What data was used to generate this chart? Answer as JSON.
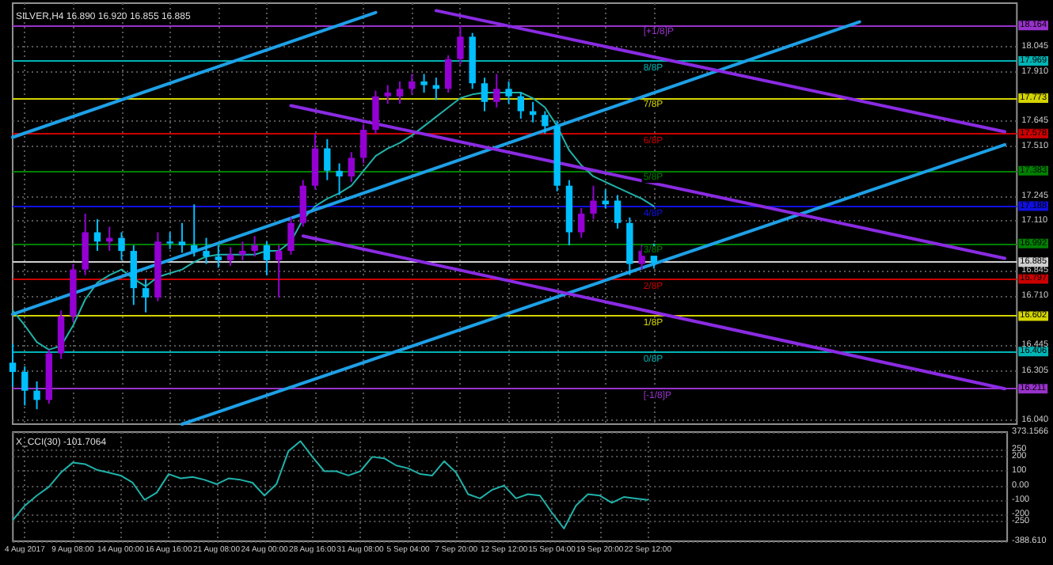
{
  "chart_data": [
    {
      "type": "candlestick",
      "title": "SILVER,H4 16.890 16.920 16.855 16.885",
      "categories": [
        null,
        null,
        null,
        null,
        null,
        null,
        null,
        null,
        null,
        null,
        null,
        null,
        null,
        null,
        null,
        null,
        null,
        null,
        null,
        null,
        null,
        null,
        null,
        null,
        null,
        null,
        null,
        null,
        null,
        null,
        null,
        null,
        null,
        null,
        null,
        null,
        null,
        null,
        null,
        null,
        null,
        null,
        null,
        null,
        null,
        null,
        null,
        null,
        null,
        null,
        null,
        null,
        null,
        null,
        null,
        null,
        null,
        null,
        null,
        null,
        null,
        null,
        null,
        null,
        null,
        null,
        null,
        null,
        null,
        null,
        null,
        null,
        null,
        null,
        null,
        null,
        null,
        null,
        null,
        null,
        null,
        null,
        null,
        null
      ],
      "ohlc": [
        [
          16.35,
          16.45,
          16.22,
          16.3
        ],
        [
          16.3,
          16.33,
          16.12,
          16.2
        ],
        [
          16.2,
          16.25,
          16.1,
          16.15
        ],
        [
          16.15,
          16.42,
          16.13,
          16.4
        ],
        [
          16.4,
          16.63,
          16.37,
          16.6
        ],
        [
          16.6,
          16.88,
          16.57,
          16.85
        ],
        [
          16.85,
          17.15,
          16.82,
          17.05
        ],
        [
          17.05,
          17.12,
          16.95,
          17.0
        ],
        [
          17.0,
          17.08,
          16.95,
          17.02
        ],
        [
          17.02,
          17.05,
          16.9,
          16.95
        ],
        [
          16.95,
          16.98,
          16.66,
          16.75
        ],
        [
          16.75,
          16.8,
          16.62,
          16.7
        ],
        [
          16.7,
          17.05,
          16.68,
          17.0
        ],
        [
          17.0,
          17.05,
          16.96,
          16.99
        ],
        [
          17.0,
          17.1,
          16.94,
          16.98
        ],
        [
          16.98,
          17.2,
          16.92,
          16.95
        ],
        [
          16.95,
          17.02,
          16.88,
          16.92
        ],
        [
          16.92,
          16.98,
          16.86,
          16.9
        ],
        [
          16.9,
          16.97,
          16.87,
          16.93
        ],
        [
          16.93,
          17.0,
          16.9,
          16.95
        ],
        [
          16.95,
          17.03,
          16.92,
          16.98
        ],
        [
          16.98,
          17.0,
          16.82,
          16.9
        ],
        [
          16.9,
          16.98,
          16.7,
          16.95
        ],
        [
          16.95,
          17.13,
          16.93,
          17.1
        ],
        [
          17.1,
          17.33,
          17.08,
          17.3
        ],
        [
          17.3,
          17.58,
          17.28,
          17.5
        ],
        [
          17.5,
          17.55,
          17.33,
          17.38
        ],
        [
          17.38,
          17.42,
          17.25,
          17.35
        ],
        [
          17.35,
          17.48,
          17.32,
          17.45
        ],
        [
          17.45,
          17.63,
          17.42,
          17.6
        ],
        [
          17.6,
          17.81,
          17.58,
          17.78
        ],
        [
          17.78,
          17.84,
          17.74,
          17.8
        ],
        [
          17.78,
          17.86,
          17.74,
          17.82
        ],
        [
          17.82,
          17.9,
          17.79,
          17.86
        ],
        [
          17.86,
          17.9,
          17.8,
          17.84
        ],
        [
          17.84,
          17.88,
          17.76,
          17.82
        ],
        [
          17.82,
          18.0,
          17.8,
          17.98
        ],
        [
          17.98,
          18.16,
          17.95,
          18.1
        ],
        [
          18.1,
          18.12,
          17.82,
          17.85
        ],
        [
          17.85,
          17.88,
          17.7,
          17.75
        ],
        [
          17.75,
          17.9,
          17.72,
          17.82
        ],
        [
          17.82,
          17.86,
          17.74,
          17.78
        ],
        [
          17.78,
          17.8,
          17.66,
          17.7
        ],
        [
          17.7,
          17.75,
          17.64,
          17.68
        ],
        [
          17.68,
          17.7,
          17.58,
          17.62
        ],
        [
          17.62,
          17.65,
          17.27,
          17.3
        ],
        [
          17.3,
          17.33,
          16.98,
          17.05
        ],
        [
          17.05,
          17.18,
          17.02,
          17.15
        ],
        [
          17.15,
          17.3,
          17.12,
          17.22
        ],
        [
          17.22,
          17.28,
          17.18,
          17.2
        ],
        [
          17.22,
          17.25,
          17.07,
          17.1
        ],
        [
          17.1,
          17.13,
          16.82,
          16.88
        ],
        [
          16.88,
          16.98,
          16.85,
          16.95
        ],
        [
          16.95,
          16.99,
          16.855,
          16.885
        ],
        null,
        null,
        null,
        null,
        null,
        null,
        null,
        null,
        null,
        null,
        null,
        null,
        null,
        null,
        null,
        null,
        null,
        null,
        null,
        null,
        null,
        null,
        null,
        null,
        null,
        null,
        null,
        null,
        null,
        null
      ],
      "colors": [
        "#00bfff",
        "#00bfff",
        "#00bfff",
        "#9400d3",
        "#9400d3",
        "#9400d3",
        "#9400d3",
        "#00bfff",
        "#9400d3",
        "#00bfff",
        "#00bfff",
        "#00bfff",
        "#9400d3",
        "#00bfff",
        "#00bfff",
        "#00bfff",
        "#00bfff",
        "#00bfff",
        "#9400d3",
        "#9400d3",
        "#9400d3",
        "#00bfff",
        "#9400d3",
        "#9400d3",
        "#9400d3",
        "#9400d3",
        "#00bfff",
        "#00bfff",
        "#9400d3",
        "#9400d3",
        "#9400d3",
        "#9400d3",
        "#9400d3",
        "#9400d3",
        "#00bfff",
        "#00bfff",
        "#9400d3",
        "#9400d3",
        "#00bfff",
        "#00bfff",
        "#9400d3",
        "#00bfff",
        "#00bfff",
        "#00bfff",
        "#00bfff",
        "#00bfff",
        "#00bfff",
        "#9400d3",
        "#9400d3",
        "#00bfff",
        "#00bfff",
        "#00bfff",
        "#9400d3",
        "#00bfff",
        null,
        null,
        null,
        null,
        null,
        null,
        null,
        null,
        null,
        null,
        null,
        null,
        null,
        null,
        null,
        null,
        null,
        null,
        null,
        null,
        null,
        null,
        null,
        null,
        null,
        null,
        null,
        null,
        null,
        null
      ],
      "series": [
        {
          "type": "line",
          "color": "#20b2aa",
          "values": [
            16.63,
            16.55,
            16.46,
            16.42,
            16.44,
            16.55,
            16.69,
            16.78,
            16.82,
            16.85,
            16.8,
            16.76,
            16.81,
            16.83,
            16.85,
            16.89,
            16.92,
            16.93,
            16.93,
            16.93,
            16.93,
            16.95,
            16.95,
            17.0,
            17.12,
            17.19,
            17.23,
            17.26,
            17.3,
            17.38,
            17.46,
            17.5,
            17.53,
            17.57,
            17.62,
            17.67,
            17.72,
            17.77,
            17.79,
            17.8,
            17.8,
            17.8,
            17.8,
            17.77,
            17.72,
            17.62,
            17.49,
            17.41,
            17.35,
            17.32,
            17.29,
            17.26,
            17.23,
            17.19,
            null,
            null,
            null,
            null,
            null,
            null,
            null,
            null,
            null,
            null,
            null,
            null,
            null,
            null,
            null,
            null,
            null,
            null,
            null,
            null,
            null,
            null,
            null,
            null,
            null,
            null,
            null,
            null,
            null,
            null
          ]
        },
        {
          "type": "line",
          "color": "#1ea0e6",
          "values": [
            17.56,
            null,
            null,
            null,
            null,
            null,
            null,
            null,
            null,
            null,
            null,
            null,
            null,
            null,
            null,
            null,
            null,
            null,
            null,
            null,
            null,
            null,
            null,
            null,
            null,
            null,
            null,
            null,
            null,
            null,
            18.23,
            null,
            null,
            null,
            null,
            null,
            null,
            null,
            null,
            null,
            null,
            null,
            null,
            null,
            null,
            null,
            null,
            null,
            null,
            null,
            null,
            null,
            null,
            null,
            null,
            null,
            null,
            null,
            null,
            null,
            null,
            null,
            null,
            null,
            null,
            null,
            null,
            null,
            null,
            null,
            null,
            null,
            null,
            null,
            null,
            null,
            null,
            null,
            null,
            null,
            null,
            null,
            null,
            null
          ]
        },
        {
          "type": "line",
          "color": "#1ea0e6",
          "values": [
            16.61,
            null,
            null,
            null,
            null,
            null,
            null,
            null,
            null,
            null,
            null,
            null,
            null,
            null,
            null,
            null,
            null,
            null,
            null,
            null,
            null,
            null,
            null,
            null,
            null,
            null,
            null,
            null,
            null,
            null,
            null,
            null,
            null,
            null,
            null,
            null,
            null,
            null,
            null,
            null,
            null,
            null,
            null,
            null,
            null,
            null,
            null,
            null,
            null,
            null,
            null,
            null,
            null,
            null,
            null,
            null,
            null,
            null,
            null,
            null,
            null,
            null,
            null,
            null,
            null,
            null,
            null,
            null,
            null,
            null,
            18.18,
            null,
            null,
            null,
            null,
            null,
            null,
            null,
            null,
            null,
            null,
            null,
            null,
            null
          ]
        },
        {
          "type": "line",
          "color": "#1ea0e6",
          "values": [
            null,
            null,
            null,
            null,
            null,
            null,
            null,
            null,
            null,
            null,
            null,
            null,
            null,
            null,
            16.02,
            null,
            null,
            null,
            null,
            null,
            null,
            null,
            null,
            null,
            null,
            null,
            null,
            null,
            null,
            null,
            null,
            null,
            null,
            null,
            null,
            null,
            null,
            null,
            null,
            null,
            null,
            null,
            null,
            null,
            null,
            null,
            null,
            null,
            null,
            null,
            null,
            null,
            null,
            null,
            null,
            null,
            null,
            null,
            null,
            null,
            null,
            null,
            null,
            null,
            null,
            null,
            null,
            null,
            null,
            null,
            null,
            null,
            null,
            null,
            null,
            null,
            null,
            null,
            null,
            null,
            null,
            null,
            17.52,
            null
          ]
        },
        {
          "type": "line",
          "color": "#8a2be2",
          "values": [
            null,
            null,
            null,
            null,
            null,
            null,
            null,
            null,
            null,
            null,
            null,
            null,
            null,
            null,
            null,
            null,
            null,
            null,
            null,
            null,
            null,
            null,
            null,
            null,
            null,
            null,
            null,
            null,
            null,
            null,
            null,
            null,
            null,
            null,
            null,
            18.24,
            null,
            null,
            null,
            null,
            null,
            null,
            null,
            null,
            null,
            null,
            null,
            null,
            null,
            null,
            null,
            null,
            null,
            null,
            null,
            null,
            null,
            null,
            null,
            null,
            null,
            null,
            null,
            null,
            null,
            null,
            null,
            null,
            null,
            null,
            null,
            null,
            null,
            null,
            null,
            null,
            null,
            null,
            null,
            null,
            null,
            null,
            17.59,
            null
          ]
        },
        {
          "type": "line",
          "color": "#8a2be2",
          "values": [
            null,
            null,
            null,
            null,
            null,
            null,
            null,
            null,
            null,
            null,
            null,
            null,
            null,
            null,
            null,
            null,
            null,
            null,
            null,
            null,
            null,
            null,
            null,
            17.73,
            null,
            null,
            null,
            null,
            null,
            null,
            null,
            null,
            null,
            null,
            null,
            null,
            null,
            null,
            null,
            null,
            null,
            null,
            null,
            null,
            null,
            null,
            null,
            null,
            null,
            null,
            null,
            null,
            null,
            null,
            null,
            null,
            null,
            null,
            null,
            null,
            null,
            null,
            null,
            null,
            null,
            null,
            null,
            null,
            null,
            null,
            null,
            null,
            null,
            null,
            null,
            null,
            null,
            null,
            null,
            null,
            null,
            null,
            16.91,
            null
          ]
        },
        {
          "type": "line",
          "color": "#8a2be2",
          "values": [
            null,
            null,
            null,
            null,
            null,
            null,
            null,
            null,
            null,
            null,
            null,
            null,
            null,
            null,
            null,
            null,
            null,
            null,
            null,
            null,
            null,
            null,
            null,
            null,
            17.03,
            null,
            null,
            null,
            null,
            null,
            null,
            null,
            null,
            null,
            null,
            null,
            null,
            null,
            null,
            null,
            null,
            null,
            null,
            null,
            null,
            null,
            null,
            null,
            null,
            null,
            null,
            null,
            null,
            null,
            null,
            null,
            null,
            null,
            null,
            null,
            null,
            null,
            null,
            null,
            null,
            null,
            null,
            null,
            null,
            null,
            null,
            null,
            null,
            null,
            null,
            null,
            null,
            null,
            null,
            null,
            null,
            null,
            16.21,
            null
          ]
        }
      ],
      "ref_lines": [
        {
          "axis": "y",
          "value": 18.164,
          "label": "18.164",
          "color": "#9932cc"
        },
        {
          "axis": "y",
          "value": 17.969,
          "label": "17.969",
          "color": "#00b4b4"
        },
        {
          "axis": "y",
          "value": 17.773,
          "label": "17.773",
          "color": "#d4d400"
        },
        {
          "axis": "y",
          "value": 17.578,
          "label": "17.578",
          "color": "#cc0000"
        },
        {
          "axis": "y",
          "value": 17.383,
          "label": "17.383",
          "color": "#008000"
        },
        {
          "axis": "y",
          "value": 17.188,
          "label": "17.188",
          "color": "#1010e0"
        },
        {
          "axis": "y",
          "value": 16.992,
          "label": "16.992",
          "color": "#008000"
        },
        {
          "axis": "y",
          "value": 16.885,
          "label": "16.885",
          "color": "#d0d0d0"
        },
        {
          "axis": "y",
          "value": 16.797,
          "label": "16.797",
          "color": "#cc0000"
        },
        {
          "axis": "y",
          "value": 16.602,
          "label": "16.602",
          "color": "#d4d400"
        },
        {
          "axis": "y",
          "value": 16.406,
          "label": "16.406",
          "color": "#00b4b4"
        },
        {
          "axis": "y",
          "value": 16.211,
          "label": "16.211",
          "color": "#9932cc"
        }
      ],
      "annotations": [
        {
          "text": "[+1/8]P",
          "y": 18.164
        },
        {
          "text": "8/8P",
          "y": 17.969
        },
        {
          "text": "7/8P",
          "y": 17.773
        },
        {
          "text": "6/8P",
          "y": 17.578
        },
        {
          "text": "5/8P",
          "y": 17.383
        },
        {
          "text": "4/8P",
          "y": 17.188
        },
        {
          "text": "3/8P",
          "y": 16.992
        },
        {
          "text": "2/8P",
          "y": 16.797
        },
        {
          "text": "1/8P",
          "y": 16.602
        },
        {
          "text": "0/8P",
          "y": 16.406
        },
        {
          "text": "[-1/8]P",
          "y": 16.211
        }
      ],
      "ylim": [
        16.02,
        18.28
      ],
      "yticks": [
        {
          "value": 16.04,
          "label": "16.040"
        },
        16.305,
        16.445,
        {
          "value": 16.71,
          "label": "16.710"
        },
        16.845,
        {
          "value": 17.11,
          "label": "17.110"
        },
        17.245,
        {
          "value": 17.51,
          "label": "17.510"
        },
        17.645,
        {
          "value": 17.91,
          "label": "17.910"
        },
        18.045
      ],
      "grid": true,
      "tick_labels": "y",
      "marker": "none"
    },
    {
      "type": "line",
      "title": "X_CCI(30) -101.7064",
      "categories": [
        null,
        "4 Aug 2017",
        null,
        null,
        null,
        "9 Aug 08:00",
        null,
        null,
        null,
        "14 Aug 00:00",
        null,
        null,
        null,
        "16 Aug 16:00",
        null,
        null,
        null,
        "21 Aug 08:00",
        null,
        null,
        null,
        "24 Aug 00:00",
        null,
        null,
        null,
        "28 Aug 16:00",
        null,
        null,
        null,
        "31 Aug 08:00",
        null,
        null,
        null,
        "5 Sep 04:00",
        null,
        null,
        null,
        "7 Sep 20:00",
        null,
        null,
        null,
        "12 Sep 12:00",
        null,
        null,
        null,
        "15 Sep 04:00",
        null,
        null,
        null,
        "19 Sep 20:00",
        null,
        null,
        null,
        "22 Sep 12:00",
        null,
        null,
        null,
        null,
        null,
        null,
        null,
        null,
        null,
        null,
        null,
        null,
        null,
        null,
        null,
        null,
        null,
        null,
        null,
        null,
        null,
        null,
        null,
        null,
        null,
        null,
        null,
        null,
        null,
        null
      ],
      "series": [
        {
          "color": "#20b2aa",
          "values": [
            -240,
            -140,
            -70,
            -10,
            90,
            160,
            150,
            110,
            90,
            70,
            20,
            -100,
            -50,
            80,
            50,
            60,
            40,
            10,
            50,
            40,
            20,
            -70,
            10,
            240,
            310,
            200,
            100,
            100,
            70,
            100,
            200,
            190,
            140,
            120,
            80,
            70,
            170,
            90,
            -60,
            -90,
            -30,
            0,
            -90,
            -60,
            -70,
            -190,
            -300,
            -140,
            -60,
            -70,
            -120,
            -80,
            -90,
            -100,
            null,
            null,
            null,
            null,
            null,
            null,
            null,
            null,
            null,
            null,
            null,
            null,
            null,
            null,
            null,
            null,
            null,
            null,
            null,
            null,
            null,
            null,
            null,
            null,
            null,
            null,
            null,
            null,
            null,
            null
          ]
        }
      ],
      "ylim": [
        -388.61,
        373.1566
      ],
      "yticks": [
        {
          "value": -388.61,
          "label": "-388.610"
        },
        -250,
        -200,
        -100,
        {
          "value": 0,
          "label": "0.00"
        },
        100,
        200,
        250,
        {
          "value": 373.1566,
          "label": "373.1566"
        }
      ],
      "grid": true,
      "marker": "none"
    }
  ]
}
